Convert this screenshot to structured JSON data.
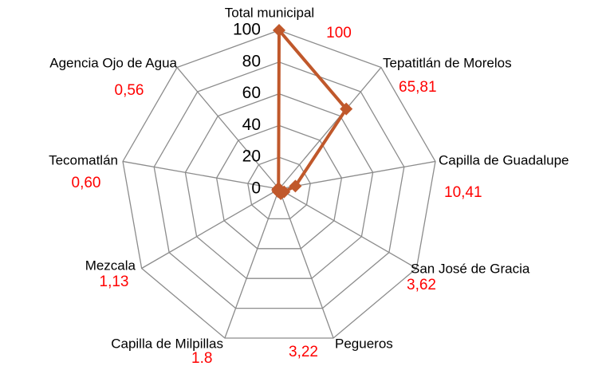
{
  "chart_data": {
    "type": "radar",
    "categories": [
      "Total municipal",
      "Tepatitlán de Morelos",
      "Capilla de Guadalupe",
      "San José de Gracia",
      "Pegueros",
      "Capilla de Milpillas",
      "Mezcala",
      "Tecomatlán",
      "Agencia Ojo de Agua"
    ],
    "values": [
      100,
      65.81,
      10.41,
      3.62,
      3.22,
      1.8,
      1.13,
      0.6,
      0.56
    ],
    "value_labels": [
      "100",
      "65,81",
      "10,41",
      "3,62",
      "3,22",
      "1.8",
      "1,13",
      "0,60",
      "0,56"
    ],
    "color": "#c0582b",
    "value_label_color": "#ff0000",
    "ylim": [
      0,
      100
    ],
    "yticks": [
      0,
      20,
      40,
      60,
      80,
      100
    ],
    "grid": true
  }
}
